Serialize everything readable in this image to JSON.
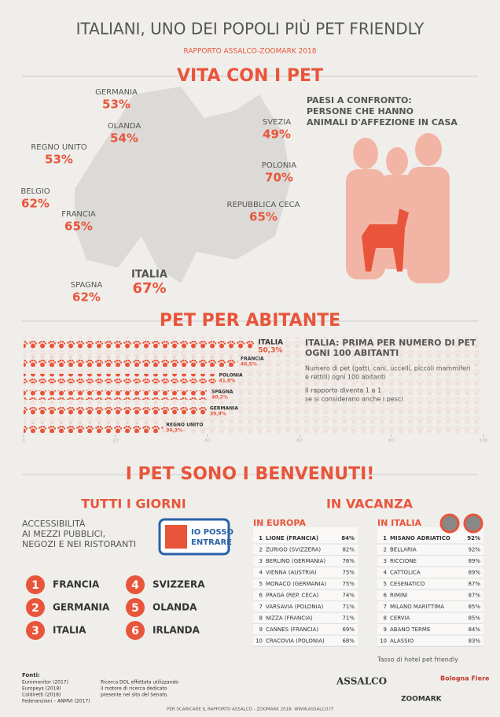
{
  "title": "ITALIANI, UNO DEI POPOLI PIÙ PET FRIENDLY",
  "subtitle": "RAPPORTO ASSALCO-ZOOMARK 2018",
  "vita": {
    "heading": "VITA CON I PET",
    "caption": [
      "PAESI A CONFRONTO:",
      "PERSONE CHE HANNO",
      "ANIMALI D'AFFEZIONE IN CASA"
    ],
    "countries": [
      {
        "name": "GERMANIA",
        "value": "53%"
      },
      {
        "name": "OLANDA",
        "value": "54%"
      },
      {
        "name": "REGNO UNITO",
        "value": "53%"
      },
      {
        "name": "BELGIO",
        "value": "62%"
      },
      {
        "name": "FRANCIA",
        "value": "65%"
      },
      {
        "name": "SPAGNA",
        "value": "62%"
      },
      {
        "name": "ITALIA",
        "value": "67%"
      },
      {
        "name": "SVEZIA",
        "value": "49%"
      },
      {
        "name": "POLONIA",
        "value": "70%"
      },
      {
        "name": "REPUBBLICA CECA",
        "value": "65%"
      }
    ]
  },
  "pet": {
    "heading": "PET PER ABITANTE",
    "categories": [
      "ITALIA",
      "FRANCIA",
      "POLONIA",
      "SPAGNA",
      "GERMANIA",
      "REGNO UNITO"
    ],
    "values": [
      50.3,
      46.5,
      41.8,
      40.2,
      39.8,
      30.3
    ],
    "value_labels": [
      "50,3%",
      "46,5%",
      "41,8%",
      "40,2%",
      "39,8%",
      "30,3%"
    ],
    "xlim": [
      0,
      100
    ],
    "xticks": [
      0,
      20,
      40,
      60,
      80,
      100
    ],
    "note_title": [
      "ITALIA: PRIMA PER NUMERO DI PET",
      "OGNI 100 ABITANTI"
    ],
    "note_body": [
      "Numero di pet (gatti, cani, uccelli, piccoli mammiferi",
      "e rettili) ogni 100 abitanti"
    ],
    "note_extra": [
      "Il rapporto diventa 1 a 1",
      "se si considerano anche i pesci"
    ]
  },
  "benvenuti": {
    "heading": "I PET SONO I BENVENUTI!",
    "tutti": {
      "heading": "TUTTI I GIORNI",
      "text": [
        "ACCESSIBILITÀ",
        "AI MEZZI PUBBLICI,",
        "NEGOZI E NEI RISTORANTI"
      ],
      "badge": [
        "IO POSSO",
        "ENTRARE"
      ],
      "ranking": [
        {
          "rank": "1",
          "name": "FRANCIA"
        },
        {
          "rank": "2",
          "name": "GERMANIA"
        },
        {
          "rank": "3",
          "name": "ITALIA"
        },
        {
          "rank": "4",
          "name": "SVIZZERA"
        },
        {
          "rank": "5",
          "name": "OLANDA"
        },
        {
          "rank": "6",
          "name": "IRLANDA"
        }
      ]
    },
    "vacanza": {
      "heading": "IN VACANZA",
      "europa": {
        "heading": "IN EUROPA",
        "rows": [
          [
            "1",
            "LIONE (FRANCIA)",
            "84%"
          ],
          [
            "2",
            "ZURIGO (SVIZZERA)",
            "82%"
          ],
          [
            "3",
            "BERLINO (GERMANIA)",
            "76%"
          ],
          [
            "4",
            "VIENNA (AUSTRIA)",
            "75%"
          ],
          [
            "5",
            "MONACO (GERMANIA)",
            "75%"
          ],
          [
            "6",
            "PRAGA (REP. CECA)",
            "74%"
          ],
          [
            "7",
            "VARSAVIA (POLONIA)",
            "71%"
          ],
          [
            "8",
            "NIZZA (FRANCIA)",
            "71%"
          ],
          [
            "9",
            "CANNES (FRANCIA)",
            "69%"
          ],
          [
            "10",
            "CRACOVIA (POLONIA)",
            "68%"
          ]
        ]
      },
      "italia": {
        "heading": "IN ITALIA",
        "rows": [
          [
            "1",
            "MISANO ADRIATICO",
            "92%"
          ],
          [
            "2",
            "BELLARIA",
            "92%"
          ],
          [
            "3",
            "RICCIONE",
            "89%"
          ],
          [
            "4",
            "CATTOLICA",
            "89%"
          ],
          [
            "5",
            "CESENATICO",
            "87%"
          ],
          [
            "6",
            "RIMINI",
            "87%"
          ],
          [
            "7",
            "MILANO MARITTIMA",
            "85%"
          ],
          [
            "8",
            "CERVIA",
            "85%"
          ],
          [
            "9",
            "ABANO TERME",
            "84%"
          ],
          [
            "10",
            "ALASSIO",
            "83%"
          ]
        ]
      },
      "footnote": "Tasso di hotel pet friendly"
    }
  },
  "footer": {
    "sources_title": "Fonti:",
    "sources": [
      "Euromonitor (2017)",
      "Europeys (2018)",
      "Coldiretti (2018)",
      "Federanziani – ANMVI (2017)"
    ],
    "ricerca": [
      "Ricerca DOL effettata utilizzando",
      "il motore di ricerca dedicato",
      "presente nel sito del Senato."
    ],
    "link": "PER SCARICARE IL RAPPORTO ASSALCO - ZOOMARK 2018: WWW.ASSALCO.IT",
    "logos": [
      "ASSALCO",
      "ZOOMARK",
      "Bologna Fiere"
    ]
  }
}
